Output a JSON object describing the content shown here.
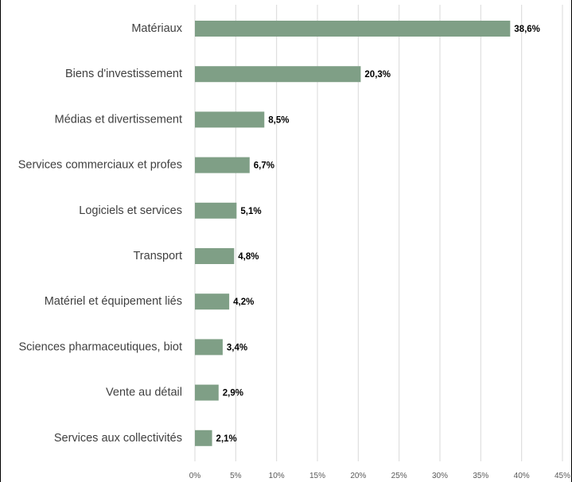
{
  "chart_data": {
    "type": "bar",
    "orientation": "horizontal",
    "categories": [
      "Matériaux",
      "Biens d'investissement",
      "Médias et divertissement",
      "Services commerciaux et profes",
      "Logiciels et services",
      "Transport",
      "Matériel et équipement liés",
      "Sciences pharmaceutiques, biot",
      "Vente au détail",
      "Services aux collectivités"
    ],
    "values": [
      38.6,
      20.3,
      8.5,
      6.7,
      5.1,
      4.8,
      4.2,
      3.4,
      2.9,
      2.1
    ],
    "value_labels": [
      "38,6%",
      "20,3%",
      "8,5%",
      "6,7%",
      "5,1%",
      "4,8%",
      "4,2%",
      "3,4%",
      "2,9%",
      "2,1%"
    ],
    "x_ticks": [
      0,
      5,
      10,
      15,
      20,
      25,
      30,
      35,
      40,
      45
    ],
    "x_tick_labels": [
      "0%",
      "5%",
      "10%",
      "15%",
      "20%",
      "25%",
      "30%",
      "35%",
      "40%",
      "45%"
    ],
    "xlim": [
      0,
      45
    ],
    "grid": "vertical",
    "bar_color": "#7f9f86",
    "grid_color": "#d9d9d9",
    "title": "",
    "xlabel": "",
    "ylabel": ""
  }
}
